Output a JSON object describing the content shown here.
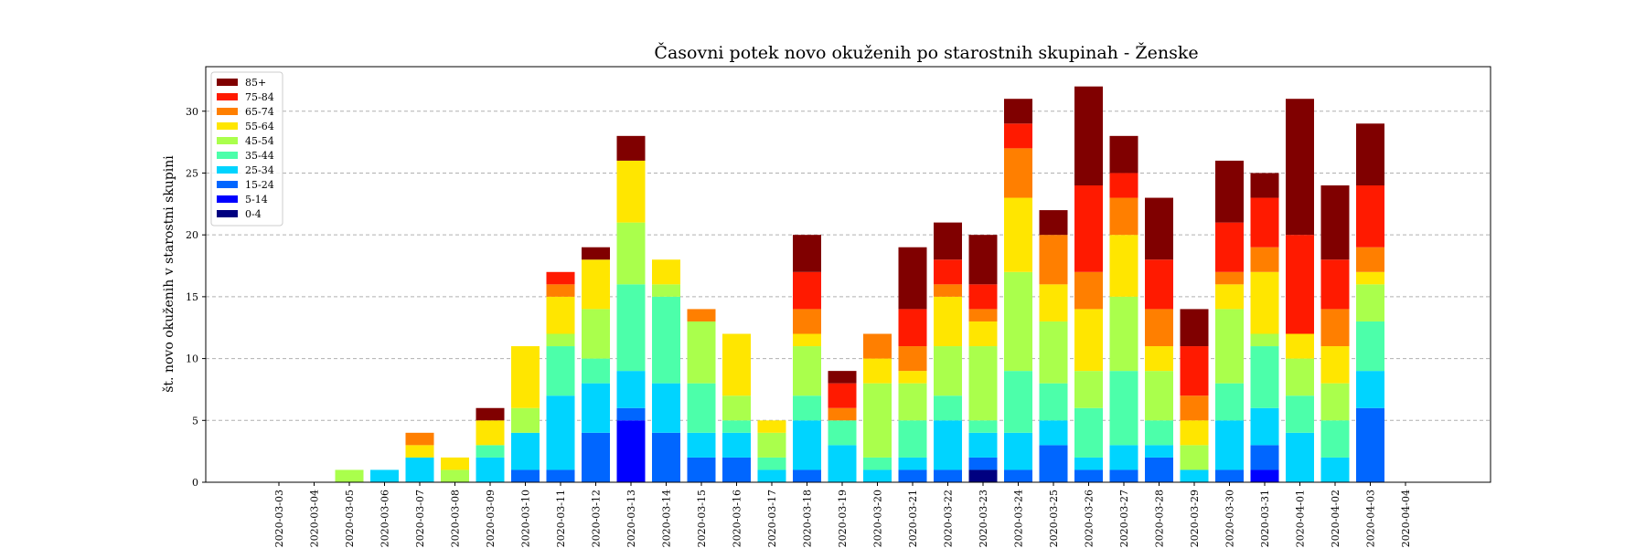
{
  "chart_data": {
    "type": "bar",
    "stacked": true,
    "title": "Časovni potek novo okuženih po starostnih skupinah - Ženske",
    "xlabel": "",
    "ylabel": "št. novo okuženih v starostni skupini",
    "ylim": [
      0,
      33.6
    ],
    "yticks": [
      0,
      5,
      10,
      15,
      20,
      25,
      30
    ],
    "grid": "horizontal dashed",
    "legend_position": "top-left",
    "categories": [
      "2020-03-03",
      "2020-03-04",
      "2020-03-05",
      "2020-03-06",
      "2020-03-07",
      "2020-03-08",
      "2020-03-09",
      "2020-03-10",
      "2020-03-11",
      "2020-03-12",
      "2020-03-13",
      "2020-03-14",
      "2020-03-15",
      "2020-03-16",
      "2020-03-17",
      "2020-03-18",
      "2020-03-19",
      "2020-03-20",
      "2020-03-21",
      "2020-03-22",
      "2020-03-23",
      "2020-03-24",
      "2020-03-25",
      "2020-03-26",
      "2020-03-27",
      "2020-03-28",
      "2020-03-29",
      "2020-03-30",
      "2020-03-31",
      "2020-04-01",
      "2020-04-02",
      "2020-04-03",
      "2020-04-04"
    ],
    "series": [
      {
        "name": "0-4",
        "color": "#000080",
        "values": [
          0,
          0,
          0,
          0,
          0,
          0,
          0,
          0,
          0,
          0,
          0,
          0,
          0,
          0,
          0,
          0,
          0,
          0,
          0,
          0,
          1,
          0,
          0,
          0,
          0,
          0,
          0,
          0,
          0,
          0,
          0,
          0,
          0
        ]
      },
      {
        "name": "5-14",
        "color": "#0000ff",
        "values": [
          0,
          0,
          0,
          0,
          0,
          0,
          0,
          0,
          0,
          0,
          5,
          0,
          0,
          0,
          0,
          0,
          0,
          0,
          0,
          0,
          0,
          0,
          0,
          0,
          0,
          0,
          0,
          0,
          1,
          0,
          0,
          0,
          0
        ]
      },
      {
        "name": "15-24",
        "color": "#0066ff",
        "values": [
          0,
          0,
          0,
          0,
          0,
          0,
          0,
          1,
          1,
          4,
          1,
          4,
          2,
          2,
          0,
          1,
          0,
          0,
          1,
          1,
          1,
          1,
          3,
          1,
          1,
          2,
          0,
          1,
          2,
          0,
          0,
          6,
          0
        ]
      },
      {
        "name": "25-34",
        "color": "#00d4ff",
        "values": [
          0,
          0,
          0,
          1,
          2,
          0,
          2,
          3,
          6,
          4,
          3,
          4,
          2,
          2,
          1,
          4,
          3,
          1,
          1,
          4,
          2,
          3,
          2,
          1,
          2,
          1,
          1,
          4,
          3,
          4,
          2,
          3,
          0
        ]
      },
      {
        "name": "35-44",
        "color": "#4cffaa",
        "values": [
          0,
          0,
          0,
          0,
          0,
          0,
          1,
          0,
          4,
          2,
          7,
          7,
          4,
          1,
          1,
          2,
          2,
          1,
          3,
          2,
          1,
          5,
          3,
          4,
          6,
          2,
          0,
          3,
          5,
          3,
          3,
          4,
          0
        ]
      },
      {
        "name": "45-54",
        "color": "#aaff4c",
        "values": [
          0,
          0,
          1,
          0,
          0,
          1,
          0,
          2,
          1,
          4,
          5,
          1,
          5,
          2,
          2,
          4,
          0,
          6,
          3,
          4,
          6,
          8,
          5,
          3,
          6,
          4,
          2,
          6,
          1,
          3,
          3,
          3,
          0
        ]
      },
      {
        "name": "55-64",
        "color": "#ffe600",
        "values": [
          0,
          0,
          0,
          0,
          1,
          1,
          2,
          5,
          3,
          4,
          5,
          2,
          0,
          5,
          1,
          1,
          0,
          2,
          1,
          4,
          2,
          6,
          3,
          5,
          5,
          2,
          2,
          2,
          5,
          2,
          3,
          1,
          0
        ]
      },
      {
        "name": "65-74",
        "color": "#ff7f00",
        "values": [
          0,
          0,
          0,
          0,
          1,
          0,
          0,
          0,
          1,
          0,
          0,
          0,
          1,
          0,
          0,
          2,
          1,
          2,
          2,
          1,
          1,
          4,
          4,
          3,
          3,
          3,
          2,
          1,
          2,
          0,
          3,
          2,
          0
        ]
      },
      {
        "name": "75-84",
        "color": "#ff1a00",
        "values": [
          0,
          0,
          0,
          0,
          0,
          0,
          0,
          0,
          1,
          0,
          0,
          0,
          0,
          0,
          0,
          3,
          2,
          0,
          3,
          2,
          2,
          2,
          0,
          7,
          2,
          4,
          4,
          4,
          4,
          8,
          4,
          5,
          0
        ]
      },
      {
        "name": "85+",
        "color": "#800000",
        "values": [
          0,
          0,
          0,
          0,
          0,
          0,
          1,
          0,
          0,
          1,
          2,
          0,
          0,
          0,
          0,
          3,
          1,
          0,
          5,
          3,
          4,
          2,
          2,
          8,
          3,
          5,
          3,
          5,
          2,
          11,
          6,
          5,
          0
        ]
      }
    ]
  }
}
